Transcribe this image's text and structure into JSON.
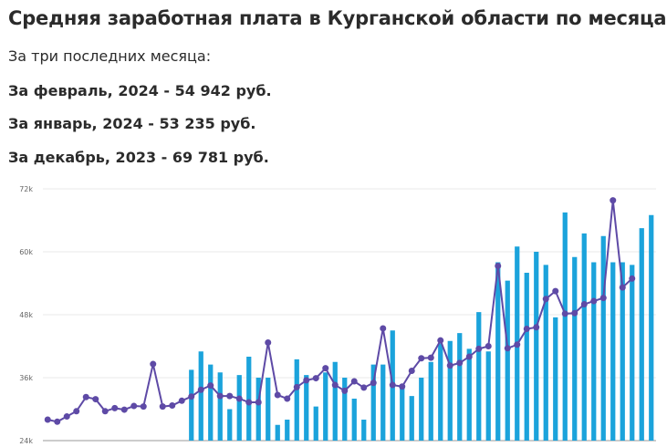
{
  "header": {
    "title": "Средняя заработная плата в Курганской области по месяцам",
    "subtitle": "За три последних месяца:",
    "lines": [
      "За февраль, 2024 - 54 942 руб.",
      "За январь, 2024 - 53 235 руб.",
      "За декабрь, 2023 - 69 781 руб."
    ]
  },
  "chart_data": {
    "type": "bar",
    "ylim": [
      24000,
      72000
    ],
    "yticks": [
      24000,
      36000,
      48000,
      60000,
      72000
    ],
    "ytick_labels": [
      "24k",
      "36k",
      "48k",
      "60k",
      "72k"
    ],
    "grid": true,
    "colors": {
      "bar": "#1BA3DB",
      "line": "#5E4AA6",
      "grid": "#e8e8e8"
    },
    "series": [
      {
        "type": "bar",
        "values": [
          null,
          null,
          null,
          null,
          null,
          null,
          null,
          null,
          null,
          null,
          null,
          null,
          null,
          null,
          null,
          37500,
          41000,
          38500,
          37000,
          30000,
          36500,
          40000,
          36000,
          36000,
          27000,
          28000,
          39500,
          36500,
          30500,
          37000,
          39000,
          36000,
          32000,
          28000,
          38500,
          38500,
          45000,
          34000,
          32500,
          36000,
          39000,
          42500,
          43000,
          44500,
          41500,
          48500,
          41000,
          58000,
          54500,
          61000,
          56000,
          60000,
          57500,
          47500,
          67500,
          59000,
          63500,
          58000,
          63000,
          58000,
          58000,
          57500,
          64500,
          67000
        ]
      },
      {
        "type": "line",
        "values": [
          28000,
          27600,
          28600,
          29600,
          32300,
          31900,
          29600,
          30200,
          29900,
          30600,
          30500,
          38600,
          30500,
          30700,
          31600,
          32400,
          33700,
          34500,
          32500,
          32500,
          32000,
          31300,
          31300,
          42700,
          32700,
          32000,
          34200,
          35500,
          35900,
          37800,
          34600,
          33500,
          35300,
          34100,
          35000,
          45400,
          34600,
          34300,
          37300,
          39700,
          39800,
          43100,
          38300,
          38800,
          40000,
          41500,
          42000,
          57300,
          41600,
          42300,
          45300,
          45600,
          51000,
          52500,
          48200,
          48300,
          50000,
          50600,
          51200,
          69800,
          53200,
          54900
        ]
      }
    ]
  }
}
